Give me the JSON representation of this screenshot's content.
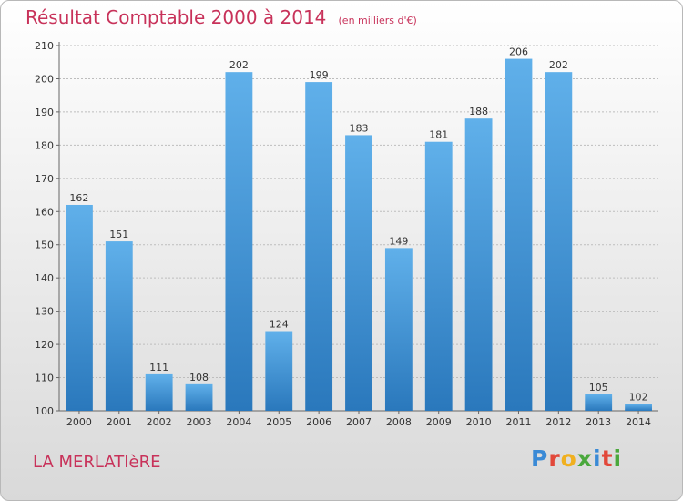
{
  "title": "Résultat Comptable 2000 à 2014",
  "subtitle": "(en milliers d'€)",
  "place": "LA MERLATIèRE",
  "brand": {
    "letters": [
      "P",
      "r",
      "o",
      "x",
      "i",
      "t",
      "i"
    ]
  },
  "colors": {
    "bar_light": "#60b0ea",
    "bar_dark": "#2a78bc",
    "title": "#c8325a",
    "brand": [
      "#3a8ad6",
      "#e2483a",
      "#f0b020",
      "#4aa83c",
      "#3a8ad6",
      "#e2483a",
      "#4aa83c"
    ]
  },
  "chart_data": {
    "type": "bar",
    "title": "Résultat Comptable 2000 à 2014",
    "subtitle": "(en milliers d'€)",
    "categories": [
      "2000",
      "2001",
      "2002",
      "2003",
      "2004",
      "2005",
      "2006",
      "2007",
      "2008",
      "2009",
      "2010",
      "2011",
      "2012",
      "2013",
      "2014"
    ],
    "values": [
      162,
      151,
      111,
      108,
      202,
      124,
      199,
      183,
      149,
      181,
      188,
      206,
      202,
      105,
      102
    ],
    "ylim": [
      100,
      210
    ],
    "yticks": [
      100,
      110,
      120,
      130,
      140,
      150,
      160,
      170,
      180,
      190,
      200,
      210
    ],
    "grid": true,
    "data_labels": true
  }
}
